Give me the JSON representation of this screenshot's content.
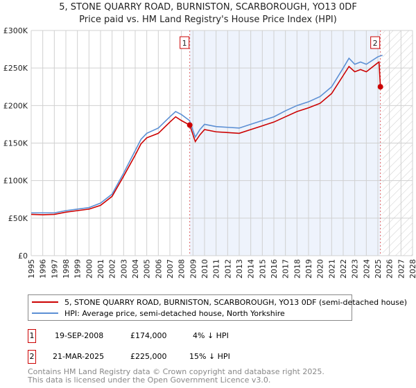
{
  "chart_data": {
    "type": "line",
    "title": "5, STONE QUARRY ROAD, BURNISTON, SCARBOROUGH, YO13 0DF",
    "subtitle": "Price paid vs. HM Land Registry's House Price Index (HPI)",
    "xlim": [
      1995,
      2028
    ],
    "ylim": [
      0,
      300000
    ],
    "xticks": [
      "1995",
      "1996",
      "1997",
      "1998",
      "1999",
      "2000",
      "2001",
      "2002",
      "2003",
      "2004",
      "2005",
      "2006",
      "2007",
      "2008",
      "2009",
      "2010",
      "2011",
      "2012",
      "2013",
      "2014",
      "2015",
      "2016",
      "2017",
      "2018",
      "2019",
      "2020",
      "2021",
      "2022",
      "2023",
      "2024",
      "2025",
      "2026",
      "2027",
      "2028"
    ],
    "yticks": [
      {
        "v": 0,
        "label": "£0"
      },
      {
        "v": 50000,
        "label": "£50K"
      },
      {
        "v": 100000,
        "label": "£100K"
      },
      {
        "v": 150000,
        "label": "£150K"
      },
      {
        "v": 200000,
        "label": "£200K"
      },
      {
        "v": 250000,
        "label": "£250K"
      },
      {
        "v": 300000,
        "label": "£300K"
      }
    ],
    "grid": true,
    "series": [
      {
        "name": "HPI: Average price, semi-detached house, North Yorkshire",
        "color": "#5b8fd4",
        "x": [
          1995,
          1996,
          1997,
          1998,
          1999,
          2000,
          2001,
          2002,
          2003,
          2004,
          2004.5,
          2005,
          2006,
          2007,
          2007.5,
          2008,
          2008.7,
          2009.2,
          2009.6,
          2010,
          2011,
          2012,
          2013,
          2014,
          2015,
          2016,
          2017,
          2018,
          2019,
          2020,
          2021,
          2022,
          2022.5,
          2023,
          2023.5,
          2024,
          2025,
          2025.4
        ],
        "y": [
          57000,
          57000,
          57000,
          60000,
          62000,
          64000,
          70000,
          82000,
          110000,
          140000,
          155000,
          163000,
          170000,
          185000,
          192000,
          188000,
          180000,
          158000,
          168000,
          175000,
          172000,
          171000,
          170000,
          175000,
          180000,
          185000,
          193000,
          200000,
          205000,
          212000,
          225000,
          250000,
          263000,
          255000,
          258000,
          255000,
          265000,
          267000
        ]
      },
      {
        "name": "5, STONE QUARRY ROAD, BURNISTON, SCARBOROUGH, YO13 0DF (semi-detached house)",
        "color": "#cc0000",
        "x": [
          1995,
          1996,
          1997,
          1998,
          1999,
          2000,
          2001,
          2002,
          2003,
          2004,
          2004.5,
          2005,
          2006,
          2007,
          2007.5,
          2008,
          2008.72,
          2009.2,
          2009.6,
          2010,
          2011,
          2012,
          2013,
          2014,
          2015,
          2016,
          2017,
          2018,
          2019,
          2020,
          2021,
          2022,
          2022.5,
          2023,
          2023.5,
          2024,
          2025,
          2025.1,
          2025.22
        ],
        "y": [
          55000,
          54500,
          55000,
          58000,
          60000,
          62000,
          67000,
          79000,
          106000,
          134000,
          149000,
          157000,
          163000,
          178000,
          185000,
          180000,
          174000,
          152000,
          161000,
          168000,
          165000,
          164000,
          163000,
          168000,
          173000,
          178000,
          185000,
          192000,
          197000,
          203000,
          216000,
          240000,
          252000,
          245000,
          248000,
          245000,
          257000,
          258000,
          225000
        ]
      }
    ],
    "sales": [
      {
        "label": "1",
        "x": 2008.72,
        "y": 174000
      },
      {
        "label": "2",
        "x": 2025.22,
        "y": 225000
      }
    ],
    "shaded_range": [
      2008.72,
      2025.22
    ],
    "hatched_from": 2025.4
  },
  "legend": {
    "property": "5, STONE QUARRY ROAD, BURNISTON, SCARBOROUGH, YO13 0DF (semi-detached house)",
    "hpi": "HPI: Average price, semi-detached house, North Yorkshire",
    "property_color": "#cc0000",
    "hpi_color": "#5b8fd4"
  },
  "transactions": [
    {
      "num": "1",
      "date": "19-SEP-2008",
      "price": "£174,000",
      "delta": "4% ↓ HPI"
    },
    {
      "num": "2",
      "date": "21-MAR-2025",
      "price": "£225,000",
      "delta": "15% ↓ HPI"
    }
  ],
  "footer": {
    "line1": "Contains HM Land Registry data © Crown copyright and database right 2025.",
    "line2": "This data is licensed under the Open Government Licence v3.0."
  }
}
